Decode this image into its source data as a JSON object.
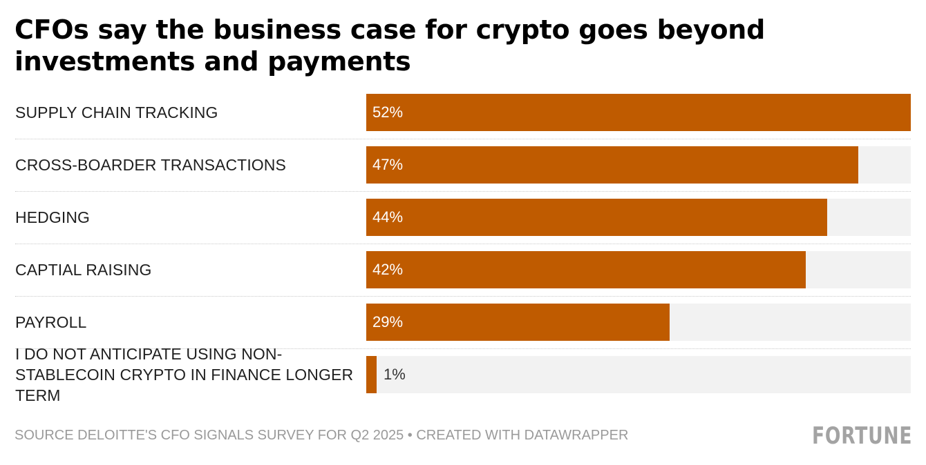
{
  "title": "CFOs say the business case for crypto goes beyond investments and payments",
  "chart_data": {
    "type": "bar",
    "orientation": "horizontal",
    "title": "CFOs say the business case for crypto goes beyond investments and payments",
    "categories": [
      "SUPPLY CHAIN TRACKING",
      "CROSS-BOARDER TRANSACTIONS",
      "HEDGING",
      "CAPTIAL RAISING",
      "PAYROLL",
      "I DO NOT ANTICIPATE USING NON-STABLECOIN CRYPTO IN FINANCE LONGER TERM"
    ],
    "values": [
      52,
      47,
      44,
      42,
      29,
      1
    ],
    "value_labels": [
      "52%",
      "47%",
      "44%",
      "42%",
      "29%",
      "1%"
    ],
    "value_suffix": "%",
    "xlim": [
      0,
      52
    ],
    "xlabel": "",
    "ylabel": "",
    "bar_color": "#bf5b00",
    "track_color": "#f2f2f2"
  },
  "footer": {
    "source": "SOURCE DELOITTE'S CFO SIGNALS SURVEY FOR Q2 2025 • CREATED WITH DATAWRAPPER",
    "logo": "FORTUNE"
  }
}
